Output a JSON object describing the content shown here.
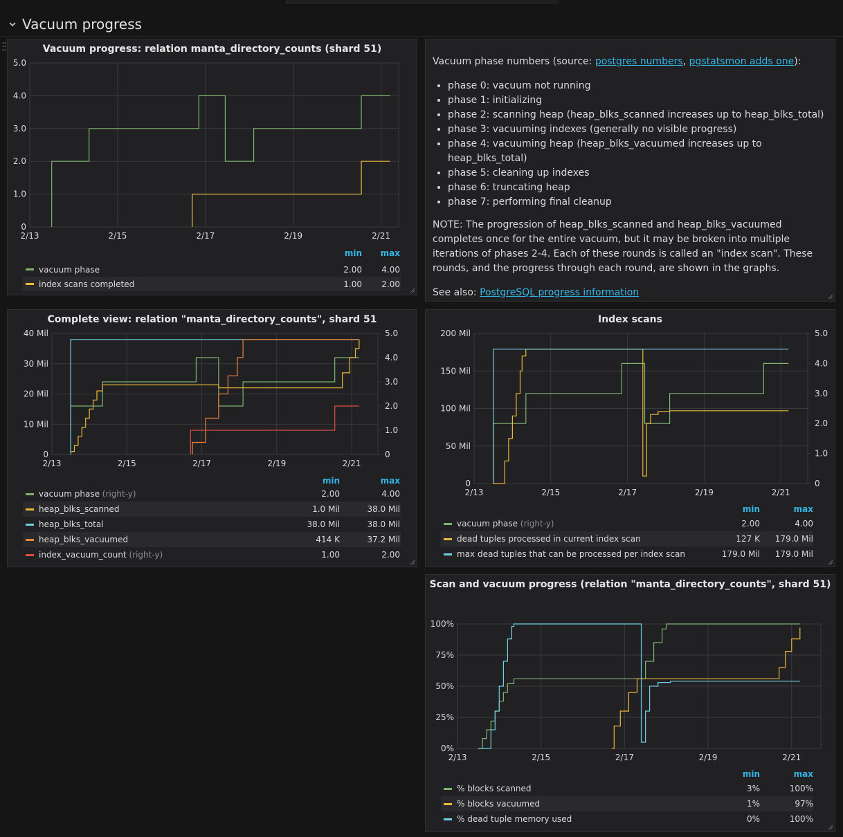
{
  "row": {
    "title": "Vacuum progress"
  },
  "text_panel": {
    "intro_prefix": "Vacuum phase numbers (source: ",
    "link1": "postgres numbers",
    "sep": ", ",
    "link2": "pgstatsmon adds one",
    "intro_suffix": "):",
    "phases": [
      "phase 0: vacuum not running",
      "phase 1: initializing",
      "phase 2: scanning heap (heap_blks_scanned increases up to heap_blks_total)",
      "phase 3: vacuuming indexes (generally no visible progress)",
      "phase 4: vacuuming heap (heap_blks_vacuumed increases up to heap_blks_total)",
      "phase 5: cleaning up indexes",
      "phase 6: truncating heap",
      "phase 7: performing final cleanup"
    ],
    "note": "NOTE: The progression of heap_blks_scanned and heap_blks_vacuumed completes once for the entire vacuum, but it may be broken into multiple iterations of phases 2-4. Each of these rounds is called an \"index scan\". These rounds, and the progress through each round, are shown in the graphs.",
    "see_also_prefix": "See also: ",
    "see_also_link": "PostgreSQL progress information"
  },
  "colors": {
    "green": "#7eb26d",
    "yellow": "#eab839",
    "cyan": "#6ed0e0",
    "orange": "#ef843c",
    "red": "#e24d42",
    "grid": "#3a3a3d",
    "header": "#33b5e5"
  },
  "chart_data": [
    {
      "id": "p1",
      "type": "line",
      "title": "Vacuum progress: relation manta_directory_counts (shard 51)",
      "xlim": [
        13.0,
        21.4
      ],
      "x_ticks": [
        {
          "v": 13,
          "label": "2/13"
        },
        {
          "v": 15,
          "label": "2/15"
        },
        {
          "v": 17,
          "label": "2/17"
        },
        {
          "v": 19,
          "label": "2/19"
        },
        {
          "v": 21,
          "label": "2/21"
        }
      ],
      "y_left": {
        "min": 0,
        "max": 5,
        "ticks": [
          {
            "v": 0,
            "label": "0"
          },
          {
            "v": 1,
            "label": "1.0"
          },
          {
            "v": 2,
            "label": "2.0"
          },
          {
            "v": 3,
            "label": "3.0"
          },
          {
            "v": 4,
            "label": "4.0"
          },
          {
            "v": 5,
            "label": "5.0"
          }
        ]
      },
      "legend_headers": [
        "min",
        "max"
      ],
      "series": [
        {
          "name": "vacuum phase",
          "color": "#7eb26d",
          "axis": "left",
          "step": true,
          "min": "2.00",
          "max": "4.00",
          "points": [
            [
              13.5,
              0
            ],
            [
              13.5,
              2
            ],
            [
              14.35,
              2
            ],
            [
              14.35,
              3
            ],
            [
              16.85,
              3
            ],
            [
              16.85,
              4
            ],
            [
              17.45,
              4
            ],
            [
              17.45,
              2
            ],
            [
              18.1,
              2
            ],
            [
              18.1,
              3
            ],
            [
              20.55,
              3
            ],
            [
              20.55,
              4
            ],
            [
              21.2,
              4
            ]
          ]
        },
        {
          "name": "index scans completed",
          "color": "#eab839",
          "axis": "left",
          "step": true,
          "min": "1.00",
          "max": "2.00",
          "points": [
            [
              16.7,
              0
            ],
            [
              16.7,
              1
            ],
            [
              20.55,
              1
            ],
            [
              20.55,
              2
            ],
            [
              21.2,
              2
            ]
          ]
        }
      ]
    },
    {
      "id": "p2",
      "type": "line",
      "title": "Complete view: relation \"manta_directory_counts\", shard 51",
      "xlim": [
        13.0,
        21.7
      ],
      "x_ticks": [
        {
          "v": 13,
          "label": "2/13"
        },
        {
          "v": 15,
          "label": "2/15"
        },
        {
          "v": 17,
          "label": "2/17"
        },
        {
          "v": 19,
          "label": "2/19"
        },
        {
          "v": 21,
          "label": "2/21"
        }
      ],
      "y_left": {
        "min": 0,
        "max": 40,
        "ticks": [
          {
            "v": 0,
            "label": "0"
          },
          {
            "v": 10,
            "label": "10 Mil"
          },
          {
            "v": 20,
            "label": "20 Mil"
          },
          {
            "v": 30,
            "label": "30 Mil"
          },
          {
            "v": 40,
            "label": "40 Mil"
          }
        ]
      },
      "y_right": {
        "min": 0,
        "max": 5,
        "ticks": [
          {
            "v": 0,
            "label": "0"
          },
          {
            "v": 1,
            "label": "1.0"
          },
          {
            "v": 2,
            "label": "2.0"
          },
          {
            "v": 3,
            "label": "3.0"
          },
          {
            "v": 4,
            "label": "4.0"
          },
          {
            "v": 5,
            "label": "5.0"
          }
        ]
      },
      "legend_headers": [
        "min",
        "max"
      ],
      "series": [
        {
          "name": "vacuum phase",
          "axis_note": "(right-y)",
          "color": "#7eb26d",
          "axis": "right",
          "step": true,
          "min": "2.00",
          "max": "4.00",
          "points": [
            [
              13.5,
              0
            ],
            [
              13.5,
              2
            ],
            [
              14.35,
              2
            ],
            [
              14.35,
              3
            ],
            [
              16.85,
              3
            ],
            [
              16.85,
              4
            ],
            [
              17.45,
              4
            ],
            [
              17.45,
              2
            ],
            [
              18.1,
              2
            ],
            [
              18.1,
              3
            ],
            [
              20.55,
              3
            ],
            [
              20.55,
              4
            ],
            [
              21.2,
              4
            ]
          ]
        },
        {
          "name": "heap_blks_scanned",
          "color": "#eab839",
          "axis": "left",
          "step": true,
          "min": "1.0 Mil",
          "max": "38.0 Mil",
          "points": [
            [
              13.5,
              1
            ],
            [
              13.6,
              3
            ],
            [
              13.7,
              6
            ],
            [
              13.8,
              9
            ],
            [
              13.9,
              12
            ],
            [
              14.0,
              15
            ],
            [
              14.1,
              18
            ],
            [
              14.2,
              21
            ],
            [
              14.35,
              23
            ],
            [
              16.85,
              23
            ],
            [
              17.45,
              22
            ],
            [
              20.5,
              22
            ],
            [
              20.75,
              27
            ],
            [
              20.95,
              32
            ],
            [
              21.1,
              35
            ],
            [
              21.2,
              38
            ]
          ]
        },
        {
          "name": "heap_blks_total",
          "color": "#6ed0e0",
          "axis": "left",
          "step": true,
          "min": "38.0 Mil",
          "max": "38.0 Mil",
          "points": [
            [
              13.5,
              0
            ],
            [
              13.5,
              38
            ],
            [
              21.2,
              38
            ]
          ]
        },
        {
          "name": "heap_blks_vacuumed",
          "color": "#ef843c",
          "axis": "left",
          "step": true,
          "min": "414 K",
          "max": "37.2 Mil",
          "points": [
            [
              16.75,
              0
            ],
            [
              16.75,
              4
            ],
            [
              17.1,
              12
            ],
            [
              17.45,
              20
            ],
            [
              17.7,
              26
            ],
            [
              17.95,
              32
            ],
            [
              18.1,
              38
            ],
            [
              21.2,
              38
            ]
          ]
        },
        {
          "name": "index_vacuum_count",
          "axis_note": "(right-y)",
          "color": "#e24d42",
          "axis": "right",
          "step": true,
          "min": "1.00",
          "max": "2.00",
          "points": [
            [
              16.7,
              0
            ],
            [
              16.7,
              1
            ],
            [
              20.55,
              1
            ],
            [
              20.55,
              2
            ],
            [
              21.2,
              2
            ]
          ]
        }
      ]
    },
    {
      "id": "p3",
      "type": "line",
      "title": "Index scans",
      "xlim": [
        13.0,
        21.7
      ],
      "x_ticks": [
        {
          "v": 13,
          "label": "2/13"
        },
        {
          "v": 15,
          "label": "2/15"
        },
        {
          "v": 17,
          "label": "2/17"
        },
        {
          "v": 19,
          "label": "2/19"
        },
        {
          "v": 21,
          "label": "2/21"
        }
      ],
      "y_left": {
        "min": 0,
        "max": 200,
        "ticks": [
          {
            "v": 0,
            "label": "0"
          },
          {
            "v": 50,
            "label": "50 Mil"
          },
          {
            "v": 100,
            "label": "100 Mil"
          },
          {
            "v": 150,
            "label": "150 Mil"
          },
          {
            "v": 200,
            "label": "200 Mil"
          }
        ]
      },
      "y_right": {
        "min": 0,
        "max": 5,
        "ticks": [
          {
            "v": 0,
            "label": "0"
          },
          {
            "v": 1,
            "label": "1.0"
          },
          {
            "v": 2,
            "label": "2.0"
          },
          {
            "v": 3,
            "label": "3.0"
          },
          {
            "v": 4,
            "label": "4.0"
          },
          {
            "v": 5,
            "label": "5.0"
          }
        ]
      },
      "legend_headers": [
        "min",
        "max"
      ],
      "series": [
        {
          "name": "vacuum phase",
          "axis_note": "(right-y)",
          "color": "#7eb26d",
          "axis": "right",
          "step": true,
          "min": "2.00",
          "max": "4.00",
          "points": [
            [
              13.5,
              0
            ],
            [
              13.5,
              2
            ],
            [
              14.35,
              2
            ],
            [
              14.35,
              3
            ],
            [
              16.85,
              3
            ],
            [
              16.85,
              4
            ],
            [
              17.45,
              4
            ],
            [
              17.45,
              2
            ],
            [
              18.1,
              2
            ],
            [
              18.1,
              3
            ],
            [
              20.55,
              3
            ],
            [
              20.55,
              4
            ],
            [
              21.2,
              4
            ]
          ]
        },
        {
          "name": "dead tuples processed in current index scan",
          "color": "#eab839",
          "axis": "left",
          "step": true,
          "min": "127 K",
          "max": "179.0 Mil",
          "points": [
            [
              13.5,
              0
            ],
            [
              13.75,
              0
            ],
            [
              13.8,
              30
            ],
            [
              13.9,
              60
            ],
            [
              14.0,
              90
            ],
            [
              14.1,
              120
            ],
            [
              14.2,
              150
            ],
            [
              14.25,
              170
            ],
            [
              14.35,
              179
            ],
            [
              17.35,
              179
            ],
            [
              17.4,
              10
            ],
            [
              17.5,
              80
            ],
            [
              17.6,
              92
            ],
            [
              17.8,
              96
            ],
            [
              18.1,
              97
            ],
            [
              21.2,
              97
            ]
          ]
        },
        {
          "name": "max dead tuples that can be processed per index scan",
          "color": "#6ed0e0",
          "axis": "left",
          "step": true,
          "min": "179.0 Mil",
          "max": "179.0 Mil",
          "points": [
            [
              13.5,
              0
            ],
            [
              13.5,
              179
            ],
            [
              21.2,
              179
            ]
          ]
        }
      ]
    },
    {
      "id": "p4",
      "type": "line",
      "title": "Scan and vacuum progress (relation \"manta_directory_counts\", shard 51)",
      "xlim": [
        13.0,
        21.7
      ],
      "x_ticks": [
        {
          "v": 13,
          "label": "2/13"
        },
        {
          "v": 15,
          "label": "2/15"
        },
        {
          "v": 17,
          "label": "2/17"
        },
        {
          "v": 19,
          "label": "2/19"
        },
        {
          "v": 21,
          "label": "2/21"
        }
      ],
      "y_left": {
        "min": 0,
        "max": 100,
        "ticks": [
          {
            "v": 0,
            "label": "0%"
          },
          {
            "v": 25,
            "label": "25%"
          },
          {
            "v": 50,
            "label": "50%"
          },
          {
            "v": 75,
            "label": "75%"
          },
          {
            "v": 100,
            "label": "100%"
          }
        ]
      },
      "legend_headers": [
        "min",
        "max"
      ],
      "series": [
        {
          "name": "% blocks scanned",
          "color": "#7eb26d",
          "axis": "left",
          "step": true,
          "min": "3%",
          "max": "100%",
          "points": [
            [
              13.5,
              0
            ],
            [
              13.6,
              8
            ],
            [
              13.7,
              15
            ],
            [
              13.8,
              22
            ],
            [
              13.9,
              30
            ],
            [
              14.0,
              38
            ],
            [
              14.1,
              45
            ],
            [
              14.2,
              52
            ],
            [
              14.35,
              56
            ],
            [
              17.3,
              56
            ],
            [
              17.5,
              70
            ],
            [
              17.7,
              85
            ],
            [
              17.9,
              96
            ],
            [
              18.0,
              100
            ],
            [
              21.2,
              100
            ]
          ]
        },
        {
          "name": "% blocks vacuumed",
          "color": "#eab839",
          "axis": "left",
          "step": true,
          "min": "1%",
          "max": "97%",
          "points": [
            [
              16.7,
              0
            ],
            [
              16.75,
              18
            ],
            [
              16.9,
              30
            ],
            [
              17.1,
              45
            ],
            [
              17.3,
              56
            ],
            [
              20.55,
              56
            ],
            [
              20.7,
              65
            ],
            [
              20.85,
              78
            ],
            [
              21.0,
              88
            ],
            [
              21.2,
              97
            ]
          ]
        },
        {
          "name": "% dead tuple memory used",
          "color": "#6ed0e0",
          "axis": "left",
          "step": true,
          "min": "0%",
          "max": "100%",
          "points": [
            [
              13.5,
              0
            ],
            [
              13.75,
              0
            ],
            [
              13.8,
              15
            ],
            [
              13.9,
              30
            ],
            [
              14.0,
              50
            ],
            [
              14.1,
              70
            ],
            [
              14.2,
              88
            ],
            [
              14.3,
              98
            ],
            [
              14.35,
              100
            ],
            [
              17.35,
              100
            ],
            [
              17.4,
              5
            ],
            [
              17.5,
              30
            ],
            [
              17.6,
              50
            ],
            [
              17.8,
              53
            ],
            [
              18.1,
              54
            ],
            [
              21.2,
              54
            ]
          ]
        }
      ]
    }
  ]
}
